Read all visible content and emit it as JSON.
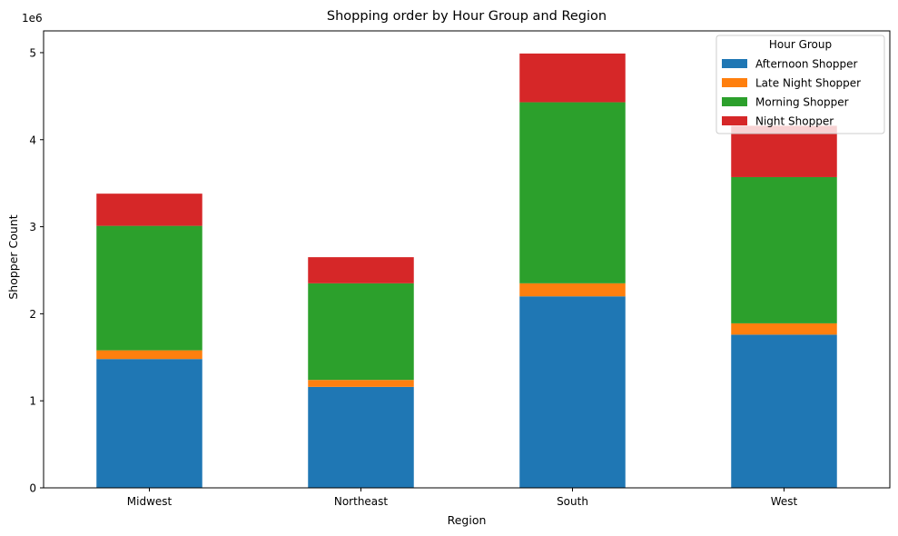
{
  "chart_data": {
    "type": "bar",
    "stacked": true,
    "title": "Shopping order by Hour Group and Region",
    "xlabel": "Region",
    "ylabel": "Shopper Count",
    "y_multiplier_label": "1e6",
    "categories": [
      "Midwest",
      "Northeast",
      "South",
      "West"
    ],
    "ylim": [
      0,
      5250000
    ],
    "yticks": [
      0,
      1000000,
      2000000,
      3000000,
      4000000,
      5000000
    ],
    "ytick_labels": [
      "0",
      "1",
      "2",
      "3",
      "4",
      "5"
    ],
    "grid": false,
    "legend": {
      "title": "Hour Group",
      "placement": "top-right"
    },
    "series": [
      {
        "name": "Afternoon Shopper",
        "color": "#1f77b4",
        "values": [
          1480000,
          1160000,
          2200000,
          1760000
        ]
      },
      {
        "name": "Late Night Shopper",
        "color": "#ff7f0e",
        "values": [
          100000,
          80000,
          150000,
          130000
        ]
      },
      {
        "name": "Morning Shopper",
        "color": "#2ca02c",
        "values": [
          1430000,
          1110000,
          2080000,
          1680000
        ]
      },
      {
        "name": "Night Shopper",
        "color": "#d62728",
        "values": [
          370000,
          300000,
          560000,
          590000
        ]
      }
    ]
  }
}
